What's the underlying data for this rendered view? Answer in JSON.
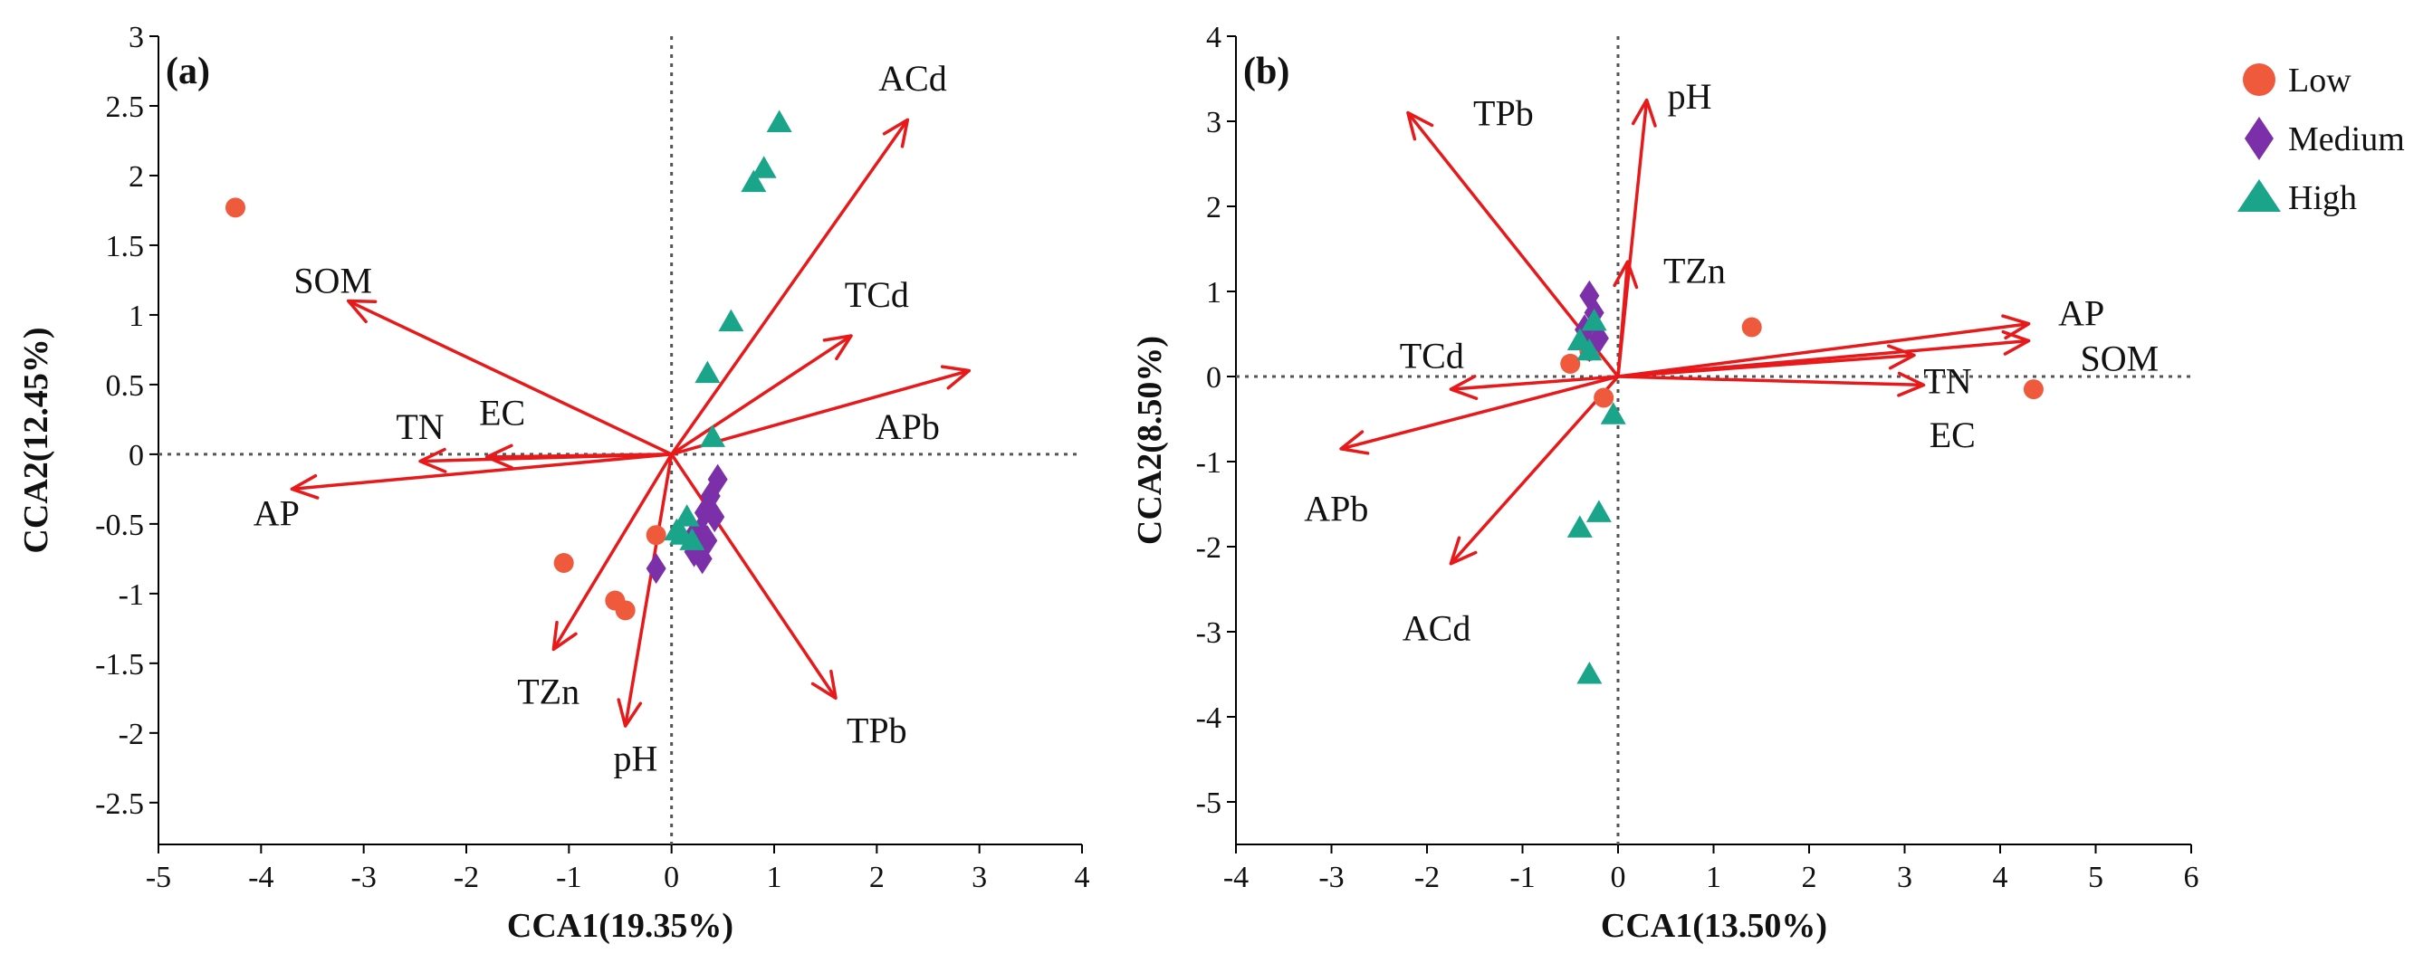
{
  "figure": {
    "legend": {
      "entries": [
        {
          "label": "Low",
          "marker": "circle",
          "color": "#f05a3c"
        },
        {
          "label": "Medium",
          "marker": "diamond",
          "color": "#7b2fa8"
        },
        {
          "label": "High",
          "marker": "triangle",
          "color": "#1aa58a"
        }
      ]
    },
    "colors": {
      "arrow": "#e8191b",
      "axis": "#000000",
      "zero_line": "#555555"
    }
  },
  "chart_data": [
    {
      "type": "scatter",
      "panel_label": "(a)",
      "xlabel": "CCA1(19.35%)",
      "ylabel": "CCA2(12.45%)",
      "xlim": [
        -5,
        4
      ],
      "ylim": [
        -2.8,
        3
      ],
      "xticks": [
        -5,
        -4,
        -3,
        -2,
        -1,
        0,
        1,
        2,
        3,
        4
      ],
      "yticks": [
        3,
        2.5,
        2,
        1.5,
        1,
        0.5,
        0,
        -0.5,
        -1,
        -1.5,
        -2,
        -2.5
      ],
      "vectors": [
        {
          "name": "ACd",
          "x": 2.3,
          "y": 2.4,
          "label_x": 2.35,
          "label_y": 2.7
        },
        {
          "name": "TCd",
          "x": 1.75,
          "y": 0.85,
          "label_x": 2.0,
          "label_y": 1.15
        },
        {
          "name": "APb",
          "x": 2.9,
          "y": 0.6,
          "label_x": 2.3,
          "label_y": 0.2
        },
        {
          "name": "SOM",
          "x": -3.15,
          "y": 1.1,
          "label_x": -3.3,
          "label_y": 1.25
        },
        {
          "name": "TN",
          "x": -2.45,
          "y": -0.05,
          "label_x": -2.45,
          "label_y": 0.2
        },
        {
          "name": "EC",
          "x": -1.8,
          "y": -0.02,
          "label_x": -1.65,
          "label_y": 0.3
        },
        {
          "name": "AP",
          "x": -3.7,
          "y": -0.25,
          "label_x": -3.85,
          "label_y": -0.42
        },
        {
          "name": "TZn",
          "x": -1.15,
          "y": -1.4,
          "label_x": -1.2,
          "label_y": -1.7
        },
        {
          "name": "pH",
          "x": -0.45,
          "y": -1.95,
          "label_x": -0.35,
          "label_y": -2.18
        },
        {
          "name": "TPb",
          "x": 1.6,
          "y": -1.75,
          "label_x": 2.0,
          "label_y": -1.98
        }
      ],
      "series": [
        {
          "name": "Low",
          "points": [
            [
              -4.25,
              1.77
            ],
            [
              -1.05,
              -0.78
            ],
            [
              -0.55,
              -1.05
            ],
            [
              -0.45,
              -1.12
            ],
            [
              -0.15,
              -0.58
            ]
          ]
        },
        {
          "name": "Medium",
          "points": [
            [
              0.45,
              -0.18
            ],
            [
              0.38,
              -0.3
            ],
            [
              0.32,
              -0.42
            ],
            [
              0.28,
              -0.55
            ],
            [
              0.35,
              -0.62
            ],
            [
              0.22,
              -0.7
            ],
            [
              0.3,
              -0.75
            ],
            [
              0.2,
              -0.6
            ],
            [
              -0.15,
              -0.82
            ],
            [
              0.42,
              -0.45
            ]
          ]
        },
        {
          "name": "High",
          "points": [
            [
              1.05,
              2.38
            ],
            [
              0.9,
              2.05
            ],
            [
              0.8,
              1.95
            ],
            [
              0.58,
              0.95
            ],
            [
              0.35,
              0.58
            ],
            [
              0.4,
              0.12
            ],
            [
              0.15,
              -0.45
            ],
            [
              0.1,
              -0.58
            ],
            [
              0.2,
              -0.62
            ],
            [
              0.05,
              -0.55
            ]
          ]
        }
      ]
    },
    {
      "type": "scatter",
      "panel_label": "(b)",
      "xlabel": "CCA1(13.50%)",
      "ylabel": "CCA2(8.50%)",
      "xlim": [
        -4,
        6
      ],
      "ylim": [
        -5.5,
        4
      ],
      "xticks": [
        -4,
        -3,
        -2,
        -1,
        0,
        1,
        2,
        3,
        4,
        5,
        6
      ],
      "yticks": [
        4,
        3,
        2,
        1,
        0,
        -1,
        -2,
        -3,
        -4,
        -5
      ],
      "vectors": [
        {
          "name": "TPb",
          "x": -2.2,
          "y": 3.1,
          "label_x": -1.2,
          "label_y": 3.1
        },
        {
          "name": "pH",
          "x": 0.3,
          "y": 3.25,
          "label_x": 0.75,
          "label_y": 3.3
        },
        {
          "name": "TZn",
          "x": 0.1,
          "y": 1.35,
          "label_x": 0.8,
          "label_y": 1.25
        },
        {
          "name": "TCd",
          "x": -1.75,
          "y": -0.15,
          "label_x": -1.95,
          "label_y": 0.25
        },
        {
          "name": "APb",
          "x": -2.9,
          "y": -0.85,
          "label_x": -2.95,
          "label_y": -1.55
        },
        {
          "name": "ACd",
          "x": -1.75,
          "y": -2.2,
          "label_x": -1.9,
          "label_y": -2.95
        },
        {
          "name": "AP",
          "x": 4.3,
          "y": 0.62,
          "label_x": 4.85,
          "label_y": 0.75
        },
        {
          "name": "SOM",
          "x": 4.3,
          "y": 0.42,
          "label_x": 5.25,
          "label_y": 0.22
        },
        {
          "name": "TN",
          "x": 3.1,
          "y": 0.25,
          "label_x": 3.45,
          "label_y": -0.05
        },
        {
          "name": "EC",
          "x": 3.2,
          "y": -0.1,
          "label_x": 3.5,
          "label_y": -0.68
        }
      ],
      "series": [
        {
          "name": "Low",
          "points": [
            [
              1.4,
              0.58
            ],
            [
              4.35,
              -0.15
            ],
            [
              -0.5,
              0.15
            ],
            [
              -0.15,
              -0.25
            ],
            [
              -0.3,
              0.3
            ]
          ]
        },
        {
          "name": "Medium",
          "points": [
            [
              -0.3,
              0.95
            ],
            [
              -0.25,
              0.75
            ],
            [
              -0.35,
              0.55
            ],
            [
              -0.2,
              0.45
            ],
            [
              -0.3,
              0.35
            ]
          ]
        },
        {
          "name": "High",
          "points": [
            [
              -0.25,
              0.65
            ],
            [
              -0.3,
              0.3
            ],
            [
              -0.4,
              0.42
            ],
            [
              -0.05,
              -0.45
            ],
            [
              -0.2,
              -1.6
            ],
            [
              -0.4,
              -1.78
            ],
            [
              -0.3,
              -3.5
            ]
          ]
        }
      ]
    }
  ]
}
